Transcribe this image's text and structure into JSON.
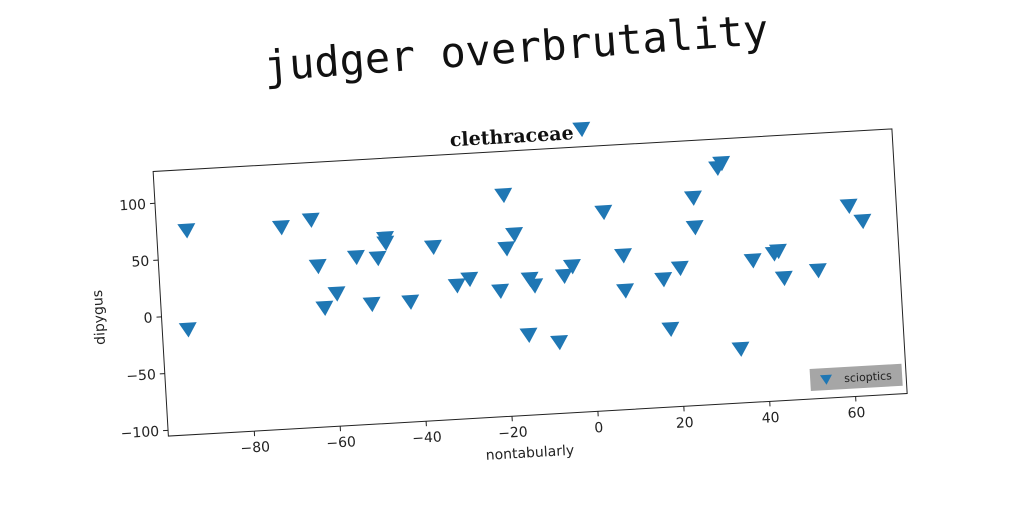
{
  "page": {
    "title": "judger overbrutality"
  },
  "chart_data": {
    "type": "scatter",
    "title": "clethraceae",
    "xlabel": "nontabularly",
    "ylabel": "dipygus",
    "xlim": [
      -100,
      72
    ],
    "ylim": [
      -105,
      128
    ],
    "xticks": [
      -80,
      -60,
      -40,
      -20,
      0,
      20,
      40,
      60
    ],
    "yticks": [
      -100,
      -50,
      0,
      50,
      100
    ],
    "xtick_labels": [
      "−80",
      "−60",
      "−40",
      "−20",
      "0",
      "20",
      "40",
      "60"
    ],
    "ytick_labels": [
      "−100",
      "−50",
      "0",
      "50",
      "100"
    ],
    "grid": false,
    "legend_position": "lower-right",
    "marker": "triangle-down",
    "color": "#1f77b4",
    "legend_bg": "#a6a6a6",
    "series": [
      {
        "name": "scioptics",
        "points": [
          [
            -93,
            75
          ],
          [
            -94,
            -12
          ],
          [
            -71,
            73
          ],
          [
            -64,
            78
          ],
          [
            -63,
            37
          ],
          [
            -62,
            0
          ],
          [
            -59,
            12
          ],
          [
            -54,
            43
          ],
          [
            -51,
            1
          ],
          [
            -49,
            41
          ],
          [
            -47,
            54
          ],
          [
            -47,
            58
          ],
          [
            -42,
            1
          ],
          [
            -36,
            48
          ],
          [
            -31,
            13
          ],
          [
            -28,
            18
          ],
          [
            -21,
            6
          ],
          [
            -19,
            90
          ],
          [
            -19,
            43
          ],
          [
            -17,
            55
          ],
          [
            -15,
            -34
          ],
          [
            -14,
            15
          ],
          [
            -13,
            9
          ],
          [
            -8,
            -42
          ],
          [
            -6,
            16
          ],
          [
            -4,
            24
          ],
          [
            0,
            144
          ],
          [
            4,
            70
          ],
          [
            8,
            31
          ],
          [
            8,
            0
          ],
          [
            17,
            8
          ],
          [
            18,
            -36
          ],
          [
            21,
            17
          ],
          [
            25,
            78
          ],
          [
            25,
            52
          ],
          [
            31,
            103
          ],
          [
            32,
            107
          ],
          [
            34,
            -57
          ],
          [
            38,
            20
          ],
          [
            43,
            25
          ],
          [
            44,
            27
          ],
          [
            45,
            3
          ],
          [
            53,
            8
          ],
          [
            61,
            63
          ],
          [
            64,
            49
          ]
        ]
      }
    ]
  }
}
